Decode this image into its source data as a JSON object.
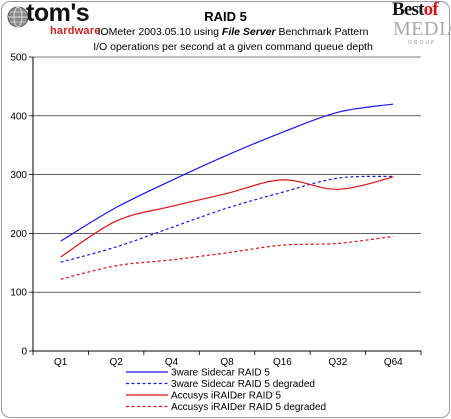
{
  "logos": {
    "toms_main": "tom's",
    "toms_sub": "hardware",
    "best_a": "Best",
    "best_b": "of",
    "best_media": "MEDIA",
    "best_group": "GROUP"
  },
  "header": {
    "title": "RAID 5",
    "subtitle_prefix": "IOMeter 2003.05.10 using ",
    "subtitle_em": "File Server",
    "subtitle_suffix": " Benchmark Pattern",
    "subtitle2": "I/O operations per second at a given command queue depth"
  },
  "colors": {
    "blue": "#1a1adf",
    "red": "#d41414",
    "axis": "#000000",
    "grid": "#000000"
  },
  "chart_data": {
    "type": "line",
    "title": "RAID 5",
    "xlabel": "",
    "ylabel": "",
    "categories": [
      "Q1",
      "Q2",
      "Q4",
      "Q8",
      "Q16",
      "Q32",
      "Q64"
    ],
    "ylim": [
      0,
      500
    ],
    "yticks": [
      0,
      100,
      200,
      300,
      400,
      500
    ],
    "grid": true,
    "legend_position": "bottom-right",
    "series": [
      {
        "name": "3ware Sidecar RAID 5",
        "color": "#1a1adf",
        "dash": "solid",
        "values": [
          187,
          244,
          290,
          333,
          372,
          406,
          420
        ]
      },
      {
        "name": "3ware Sidecar RAID 5 degraded",
        "color": "#1a1adf",
        "dash": "dashed",
        "values": [
          151,
          177,
          210,
          243,
          270,
          294,
          297
        ]
      },
      {
        "name": "Accusys iRAIDer RAID 5",
        "color": "#d41414",
        "dash": "solid",
        "values": [
          160,
          221,
          246,
          268,
          291,
          275,
          296
        ]
      },
      {
        "name": "Accusys iRAIDer RAID 5 degraded",
        "color": "#d41414",
        "dash": "dashed",
        "values": [
          122,
          145,
          155,
          167,
          180,
          183,
          195
        ]
      }
    ]
  }
}
